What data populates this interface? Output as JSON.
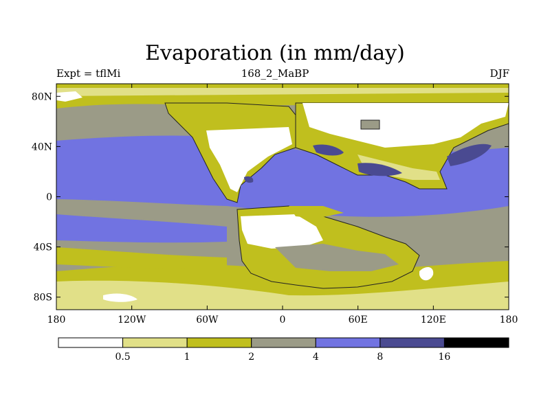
{
  "title": "Evaporation (in mm/day)",
  "subtitle_left": "Expt = tflMi",
  "subtitle_center": "168_2_MaBP",
  "subtitle_right": "DJF",
  "lat_ticks": [
    {
      "label": "80N",
      "lat": 80
    },
    {
      "label": "40N",
      "lat": 40
    },
    {
      "label": "0",
      "lat": 0
    },
    {
      "label": "40S",
      "lat": -40
    },
    {
      "label": "80S",
      "lat": -80
    }
  ],
  "lon_ticks": [
    {
      "label": "180",
      "lon": -180
    },
    {
      "label": "120W",
      "lon": -120
    },
    {
      "label": "60W",
      "lon": -60
    },
    {
      "label": "0",
      "lon": 0
    },
    {
      "label": "60E",
      "lon": 60
    },
    {
      "label": "120E",
      "lon": 120
    },
    {
      "label": "180",
      "lon": 180
    }
  ],
  "colorbar": {
    "colors": [
      "#ffffff",
      "#e1e088",
      "#c0bf1e",
      "#9b9b87",
      "#7173e1",
      "#4a4a91",
      "#000000"
    ],
    "labels": [
      "0.5",
      "1",
      "2",
      "4",
      "8",
      "16"
    ]
  }
}
